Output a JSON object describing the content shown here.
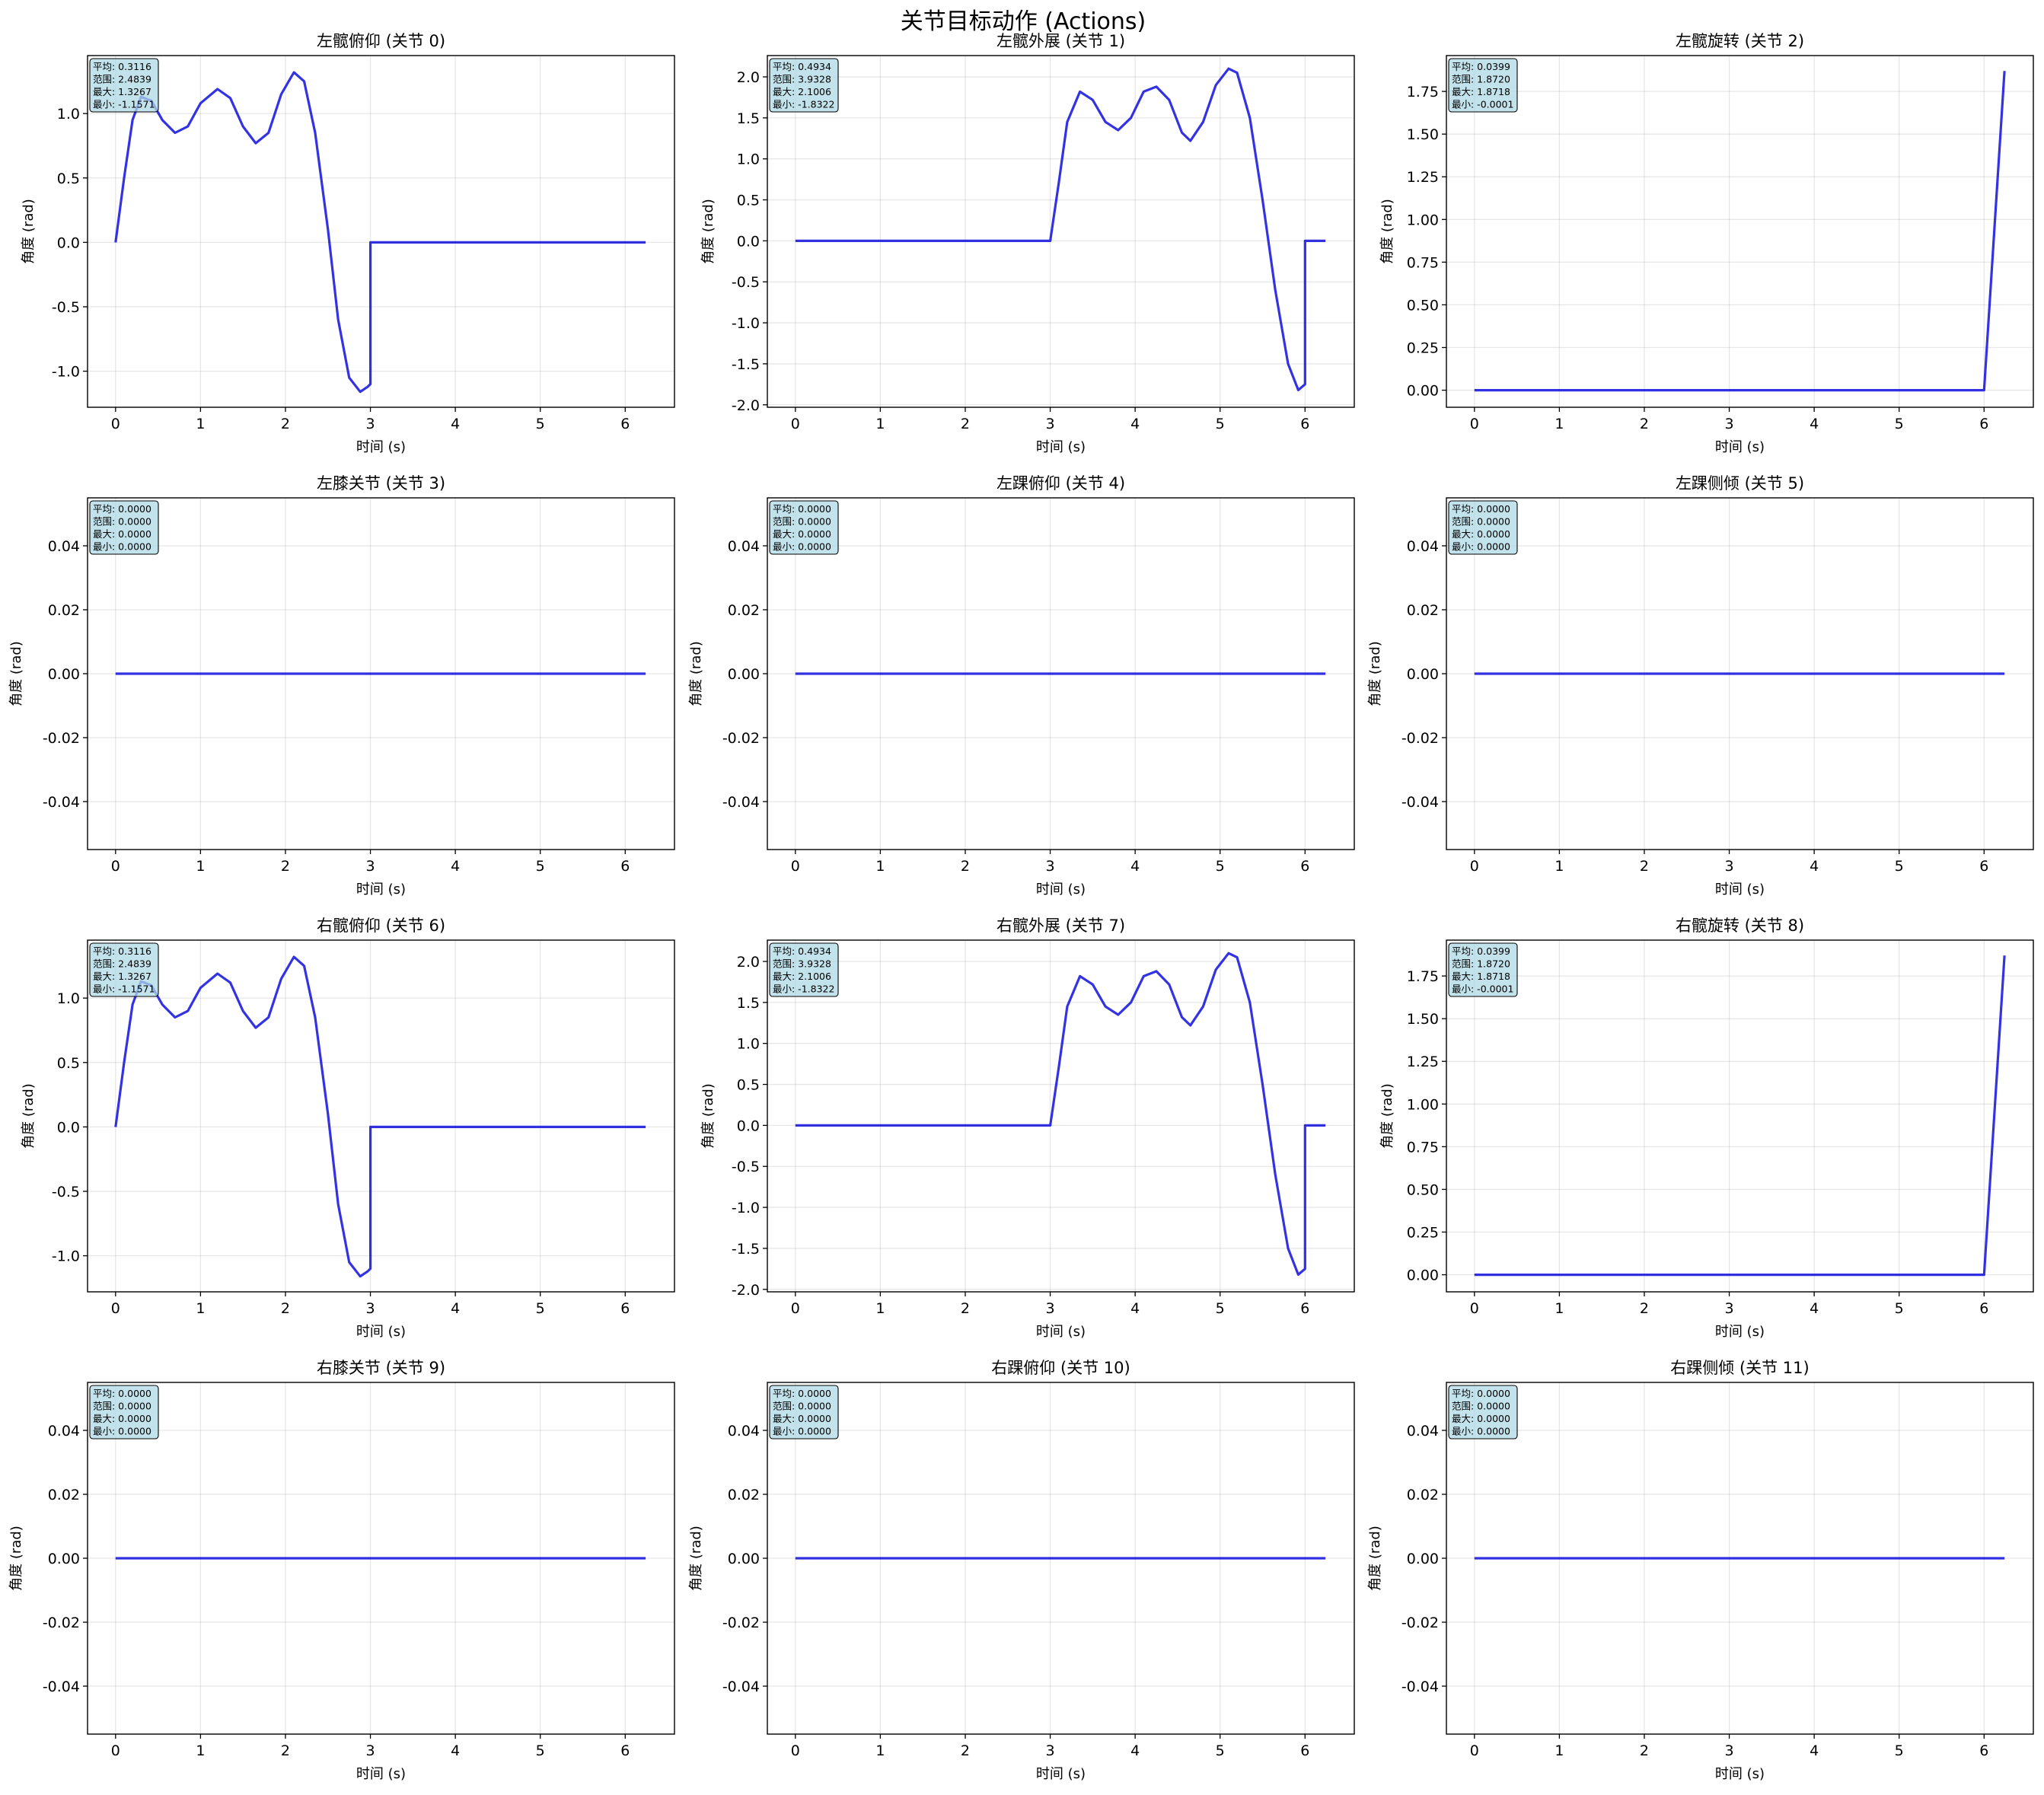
{
  "figure_title": "关节目标动作 (Actions)",
  "chart_data": [
    {
      "type": "line",
      "title": "左髋俯仰 (关节 0)",
      "xlabel": "时间 (s)",
      "ylabel": "角度 (rad)",
      "xlim": [
        -0.33,
        6.58
      ],
      "ylim": [
        -1.28,
        1.45
      ],
      "xticks": [
        0,
        1,
        2,
        3,
        4,
        5,
        6
      ],
      "yticks": [
        -1.0,
        -0.5,
        0.0,
        0.5,
        1.0
      ],
      "ytick_decimals": 1,
      "grid": true,
      "stats": [
        "平均: 0.3116",
        "范围: 2.4839",
        "最大: 1.3267",
        "最小: -1.1571"
      ],
      "series": [
        {
          "color": "#0000dd",
          "points": [
            [
              0,
              0
            ],
            [
              0.1,
              0.5
            ],
            [
              0.2,
              0.95
            ],
            [
              0.3,
              1.13
            ],
            [
              0.42,
              1.1
            ],
            [
              0.55,
              0.95
            ],
            [
              0.7,
              0.85
            ],
            [
              0.85,
              0.9
            ],
            [
              1.0,
              1.08
            ],
            [
              1.2,
              1.19
            ],
            [
              1.35,
              1.12
            ],
            [
              1.5,
              0.9
            ],
            [
              1.65,
              0.77
            ],
            [
              1.8,
              0.85
            ],
            [
              1.95,
              1.15
            ],
            [
              2.1,
              1.32
            ],
            [
              2.22,
              1.25
            ],
            [
              2.35,
              0.85
            ],
            [
              2.5,
              0.1
            ],
            [
              2.62,
              -0.6
            ],
            [
              2.75,
              -1.05
            ],
            [
              2.88,
              -1.16
            ],
            [
              2.97,
              -1.12
            ],
            [
              3.0,
              -1.1
            ],
            [
              3.0,
              0.0
            ],
            [
              6.24,
              0.0
            ]
          ]
        }
      ]
    },
    {
      "type": "line",
      "title": "左髋外展 (关节 1)",
      "xlabel": "时间 (s)",
      "ylabel": "角度 (rad)",
      "xlim": [
        -0.33,
        6.58
      ],
      "ylim": [
        -2.03,
        2.26
      ],
      "xticks": [
        0,
        1,
        2,
        3,
        4,
        5,
        6
      ],
      "yticks": [
        -2.0,
        -1.5,
        -1.0,
        -0.5,
        0.0,
        0.5,
        1.0,
        1.5,
        2.0
      ],
      "ytick_decimals": 1,
      "grid": true,
      "stats": [
        "平均: 0.4934",
        "范围: 3.9328",
        "最大: 2.1006",
        "最小: -1.8322"
      ],
      "series": [
        {
          "color": "#0000dd",
          "points": [
            [
              0,
              0
            ],
            [
              3.0,
              0
            ],
            [
              3.1,
              0.7
            ],
            [
              3.2,
              1.45
            ],
            [
              3.35,
              1.82
            ],
            [
              3.5,
              1.72
            ],
            [
              3.65,
              1.45
            ],
            [
              3.8,
              1.35
            ],
            [
              3.95,
              1.5
            ],
            [
              4.1,
              1.82
            ],
            [
              4.25,
              1.88
            ],
            [
              4.4,
              1.72
            ],
            [
              4.55,
              1.32
            ],
            [
              4.65,
              1.22
            ],
            [
              4.8,
              1.45
            ],
            [
              4.95,
              1.9
            ],
            [
              5.1,
              2.1
            ],
            [
              5.2,
              2.05
            ],
            [
              5.35,
              1.5
            ],
            [
              5.5,
              0.5
            ],
            [
              5.65,
              -0.6
            ],
            [
              5.8,
              -1.5
            ],
            [
              5.92,
              -1.82
            ],
            [
              6.0,
              -1.75
            ],
            [
              6.0,
              0.0
            ],
            [
              6.24,
              0.0
            ]
          ]
        }
      ]
    },
    {
      "type": "line",
      "title": "左髋旋转 (关节 2)",
      "xlabel": "时间 (s)",
      "ylabel": "角度 (rad)",
      "xlim": [
        -0.33,
        6.58
      ],
      "ylim": [
        -0.1,
        1.96
      ],
      "xticks": [
        0,
        1,
        2,
        3,
        4,
        5,
        6
      ],
      "yticks": [
        0.0,
        0.25,
        0.5,
        0.75,
        1.0,
        1.25,
        1.5,
        1.75
      ],
      "ytick_decimals": 2,
      "grid": true,
      "stats": [
        "平均: 0.0399",
        "范围: 1.8720",
        "最大: 1.8718",
        "最小: -0.0001"
      ],
      "series": [
        {
          "color": "#0000dd",
          "points": [
            [
              0,
              0
            ],
            [
              6.0,
              0
            ],
            [
              6.24,
              1.87
            ]
          ]
        }
      ]
    },
    {
      "type": "line",
      "title": "左膝关节 (关节 3)",
      "xlabel": "时间 (s)",
      "ylabel": "角度 (rad)",
      "xlim": [
        -0.33,
        6.58
      ],
      "ylim": [
        -0.055,
        0.055
      ],
      "xticks": [
        0,
        1,
        2,
        3,
        4,
        5,
        6
      ],
      "yticks": [
        -0.04,
        -0.02,
        0.0,
        0.02,
        0.04
      ],
      "ytick_decimals": 2,
      "grid": true,
      "stats": [
        "平均: 0.0000",
        "范围: 0.0000",
        "最大: 0.0000",
        "最小: 0.0000"
      ],
      "series": [
        {
          "color": "#0000dd",
          "points": [
            [
              0,
              0
            ],
            [
              6.24,
              0
            ]
          ]
        }
      ]
    },
    {
      "type": "line",
      "title": "左踝俯仰 (关节 4)",
      "xlabel": "时间 (s)",
      "ylabel": "角度 (rad)",
      "xlim": [
        -0.33,
        6.58
      ],
      "ylim": [
        -0.055,
        0.055
      ],
      "xticks": [
        0,
        1,
        2,
        3,
        4,
        5,
        6
      ],
      "yticks": [
        -0.04,
        -0.02,
        0.0,
        0.02,
        0.04
      ],
      "ytick_decimals": 2,
      "grid": true,
      "stats": [
        "平均: 0.0000",
        "范围: 0.0000",
        "最大: 0.0000",
        "最小: 0.0000"
      ],
      "series": [
        {
          "color": "#0000dd",
          "points": [
            [
              0,
              0
            ],
            [
              6.24,
              0
            ]
          ]
        }
      ]
    },
    {
      "type": "line",
      "title": "左踝侧倾 (关节 5)",
      "xlabel": "时间 (s)",
      "ylabel": "角度 (rad)",
      "xlim": [
        -0.33,
        6.58
      ],
      "ylim": [
        -0.055,
        0.055
      ],
      "xticks": [
        0,
        1,
        2,
        3,
        4,
        5,
        6
      ],
      "yticks": [
        -0.04,
        -0.02,
        0.0,
        0.02,
        0.04
      ],
      "ytick_decimals": 2,
      "grid": true,
      "stats": [
        "平均: 0.0000",
        "范围: 0.0000",
        "最大: 0.0000",
        "最小: 0.0000"
      ],
      "series": [
        {
          "color": "#0000dd",
          "points": [
            [
              0,
              0
            ],
            [
              6.24,
              0
            ]
          ]
        }
      ]
    },
    {
      "type": "line",
      "title": "右髋俯仰 (关节 6)",
      "xlabel": "时间 (s)",
      "ylabel": "角度 (rad)",
      "xlim": [
        -0.33,
        6.58
      ],
      "ylim": [
        -1.28,
        1.45
      ],
      "xticks": [
        0,
        1,
        2,
        3,
        4,
        5,
        6
      ],
      "yticks": [
        -1.0,
        -0.5,
        0.0,
        0.5,
        1.0
      ],
      "ytick_decimals": 1,
      "grid": true,
      "stats": [
        "平均: 0.3116",
        "范围: 2.4839",
        "最大: 1.3267",
        "最小: -1.1571"
      ],
      "series": [
        {
          "color": "#0000dd",
          "points": [
            [
              0,
              0
            ],
            [
              0.1,
              0.5
            ],
            [
              0.2,
              0.95
            ],
            [
              0.3,
              1.13
            ],
            [
              0.42,
              1.1
            ],
            [
              0.55,
              0.95
            ],
            [
              0.7,
              0.85
            ],
            [
              0.85,
              0.9
            ],
            [
              1.0,
              1.08
            ],
            [
              1.2,
              1.19
            ],
            [
              1.35,
              1.12
            ],
            [
              1.5,
              0.9
            ],
            [
              1.65,
              0.77
            ],
            [
              1.8,
              0.85
            ],
            [
              1.95,
              1.15
            ],
            [
              2.1,
              1.32
            ],
            [
              2.22,
              1.25
            ],
            [
              2.35,
              0.85
            ],
            [
              2.5,
              0.1
            ],
            [
              2.62,
              -0.6
            ],
            [
              2.75,
              -1.05
            ],
            [
              2.88,
              -1.16
            ],
            [
              2.97,
              -1.12
            ],
            [
              3.0,
              -1.1
            ],
            [
              3.0,
              0.0
            ],
            [
              6.24,
              0.0
            ]
          ]
        }
      ]
    },
    {
      "type": "line",
      "title": "右髋外展 (关节 7)",
      "xlabel": "时间 (s)",
      "ylabel": "角度 (rad)",
      "xlim": [
        -0.33,
        6.58
      ],
      "ylim": [
        -2.03,
        2.26
      ],
      "xticks": [
        0,
        1,
        2,
        3,
        4,
        5,
        6
      ],
      "yticks": [
        -2.0,
        -1.5,
        -1.0,
        -0.5,
        0.0,
        0.5,
        1.0,
        1.5,
        2.0
      ],
      "ytick_decimals": 1,
      "grid": true,
      "stats": [
        "平均: 0.4934",
        "范围: 3.9328",
        "最大: 2.1006",
        "最小: -1.8322"
      ],
      "series": [
        {
          "color": "#0000dd",
          "points": [
            [
              0,
              0
            ],
            [
              3.0,
              0
            ],
            [
              3.1,
              0.7
            ],
            [
              3.2,
              1.45
            ],
            [
              3.35,
              1.82
            ],
            [
              3.5,
              1.72
            ],
            [
              3.65,
              1.45
            ],
            [
              3.8,
              1.35
            ],
            [
              3.95,
              1.5
            ],
            [
              4.1,
              1.82
            ],
            [
              4.25,
              1.88
            ],
            [
              4.4,
              1.72
            ],
            [
              4.55,
              1.32
            ],
            [
              4.65,
              1.22
            ],
            [
              4.8,
              1.45
            ],
            [
              4.95,
              1.9
            ],
            [
              5.1,
              2.1
            ],
            [
              5.2,
              2.05
            ],
            [
              5.35,
              1.5
            ],
            [
              5.5,
              0.5
            ],
            [
              5.65,
              -0.6
            ],
            [
              5.8,
              -1.5
            ],
            [
              5.92,
              -1.82
            ],
            [
              6.0,
              -1.75
            ],
            [
              6.0,
              0.0
            ],
            [
              6.24,
              0.0
            ]
          ]
        }
      ]
    },
    {
      "type": "line",
      "title": "右髋旋转 (关节 8)",
      "xlabel": "时间 (s)",
      "ylabel": "角度 (rad)",
      "xlim": [
        -0.33,
        6.58
      ],
      "ylim": [
        -0.1,
        1.96
      ],
      "xticks": [
        0,
        1,
        2,
        3,
        4,
        5,
        6
      ],
      "yticks": [
        0.0,
        0.25,
        0.5,
        0.75,
        1.0,
        1.25,
        1.5,
        1.75
      ],
      "ytick_decimals": 2,
      "grid": true,
      "stats": [
        "平均: 0.0399",
        "范围: 1.8720",
        "最大: 1.8718",
        "最小: -0.0001"
      ],
      "series": [
        {
          "color": "#0000dd",
          "points": [
            [
              0,
              0
            ],
            [
              6.0,
              0
            ],
            [
              6.24,
              1.87
            ]
          ]
        }
      ]
    },
    {
      "type": "line",
      "title": "右膝关节 (关节 9)",
      "xlabel": "时间 (s)",
      "ylabel": "角度 (rad)",
      "xlim": [
        -0.33,
        6.58
      ],
      "ylim": [
        -0.055,
        0.055
      ],
      "xticks": [
        0,
        1,
        2,
        3,
        4,
        5,
        6
      ],
      "yticks": [
        -0.04,
        -0.02,
        0.0,
        0.02,
        0.04
      ],
      "ytick_decimals": 2,
      "grid": true,
      "stats": [
        "平均: 0.0000",
        "范围: 0.0000",
        "最大: 0.0000",
        "最小: 0.0000"
      ],
      "series": [
        {
          "color": "#0000dd",
          "points": [
            [
              0,
              0
            ],
            [
              6.24,
              0
            ]
          ]
        }
      ]
    },
    {
      "type": "line",
      "title": "右踝俯仰 (关节 10)",
      "xlabel": "时间 (s)",
      "ylabel": "角度 (rad)",
      "xlim": [
        -0.33,
        6.58
      ],
      "ylim": [
        -0.055,
        0.055
      ],
      "xticks": [
        0,
        1,
        2,
        3,
        4,
        5,
        6
      ],
      "yticks": [
        -0.04,
        -0.02,
        0.0,
        0.02,
        0.04
      ],
      "ytick_decimals": 2,
      "grid": true,
      "stats": [
        "平均: 0.0000",
        "范围: 0.0000",
        "最大: 0.0000",
        "最小: 0.0000"
      ],
      "series": [
        {
          "color": "#0000dd",
          "points": [
            [
              0,
              0
            ],
            [
              6.24,
              0
            ]
          ]
        }
      ]
    },
    {
      "type": "line",
      "title": "右踝侧倾 (关节 11)",
      "xlabel": "时间 (s)",
      "ylabel": "角度 (rad)",
      "xlim": [
        -0.33,
        6.58
      ],
      "ylim": [
        -0.055,
        0.055
      ],
      "xticks": [
        0,
        1,
        2,
        3,
        4,
        5,
        6
      ],
      "yticks": [
        -0.04,
        -0.02,
        0.0,
        0.02,
        0.04
      ],
      "ytick_decimals": 2,
      "grid": true,
      "stats": [
        "平均: 0.0000",
        "范围: 0.0000",
        "最大: 0.0000",
        "最小: 0.0000"
      ],
      "series": [
        {
          "color": "#0000dd",
          "points": [
            [
              0,
              0
            ],
            [
              6.24,
              0
            ]
          ]
        }
      ]
    }
  ]
}
